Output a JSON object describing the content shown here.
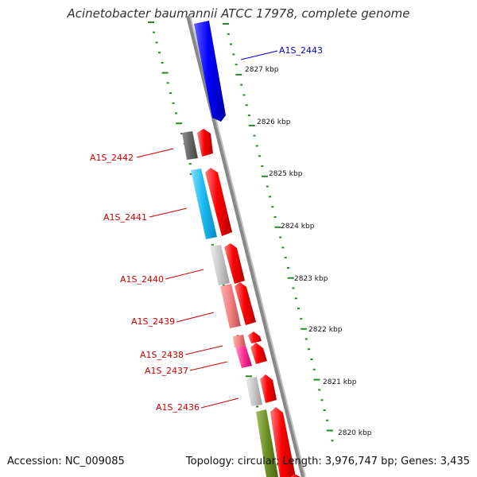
{
  "title": "Acinetobacter baumannii ATCC 17978, complete genome",
  "kbp_labels": [
    "2827 kbp",
    "2826 kbp",
    "2825 kbp",
    "2824 kbp",
    "2823 kbp",
    "2822 kbp",
    "2821 kbp",
    "2820 kbp"
  ],
  "genes": [
    {
      "id": "A1S_2443",
      "color": "#0000cc"
    },
    {
      "id": "A1S_2442",
      "color": "#cc0000"
    },
    {
      "id": "A1S_2441",
      "color": "#cc0000"
    },
    {
      "id": "A1S_2440",
      "color": "#cc0000"
    },
    {
      "id": "A1S_2439",
      "color": "#cc0000"
    },
    {
      "id": "A1S_2438",
      "color": "#cc0000"
    },
    {
      "id": "A1S_2437",
      "color": "#cc0000"
    },
    {
      "id": "A1S_2436",
      "color": "#cc0000"
    }
  ],
  "accession": "Accession: NC_009085",
  "summary": "Topology: circular; Length: 3,976,747 bp; Genes: 3,435",
  "colors": {
    "backbone": "#888888",
    "tick": "#228b22",
    "forward_strand": "#ff0000",
    "reverse_strand": "#0000ff",
    "cds_gray": "#c8c8c8",
    "cds_dark": "#666666",
    "cds_cyan": "#18b8f0",
    "cds_salmon": "#f08080",
    "cds_pink": "#ff5aa0",
    "cds_olive": "#6b8e23"
  }
}
